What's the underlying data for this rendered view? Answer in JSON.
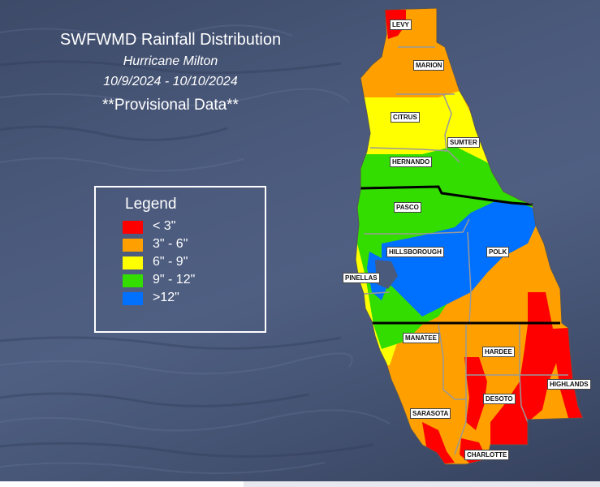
{
  "title": {
    "line1": "SWFWMD Rainfall Distribution",
    "line2": "Hurricane Milton",
    "line3": "10/9/2024 - 10/10/2024",
    "line4": "**Provisional Data**"
  },
  "legend": {
    "title": "Legend",
    "items": [
      {
        "label": "< 3\"",
        "color": "#ff0000"
      },
      {
        "label": "3\" - 6\"",
        "color": "#ffa000"
      },
      {
        "label": "6\" - 9\"",
        "color": "#ffff00"
      },
      {
        "label": "9\" - 12\"",
        "color": "#33dd00"
      },
      {
        "label": ">12\"",
        "color": "#0070ff"
      }
    ]
  },
  "counties": {
    "levy": "LEVY",
    "marion": "MARION",
    "citrus": "CITRUS",
    "sumter": "SUMTER",
    "hernando": "HERNANDO",
    "pasco": "PASCO",
    "hillsborough": "HILLSBOROUGH",
    "polk": "POLK",
    "pinellas": "PINELLAS",
    "manatee": "MANATEE",
    "hardee": "HARDEE",
    "highlands": "HIGHLANDS",
    "desoto": "DESOTO",
    "sarasota": "SARASOTA",
    "charlotte": "CHARLOTTE"
  },
  "colors": {
    "red": "#ff0000",
    "orange": "#ffa000",
    "yellow": "#ffff00",
    "green": "#33dd00",
    "blue": "#0070ff"
  }
}
